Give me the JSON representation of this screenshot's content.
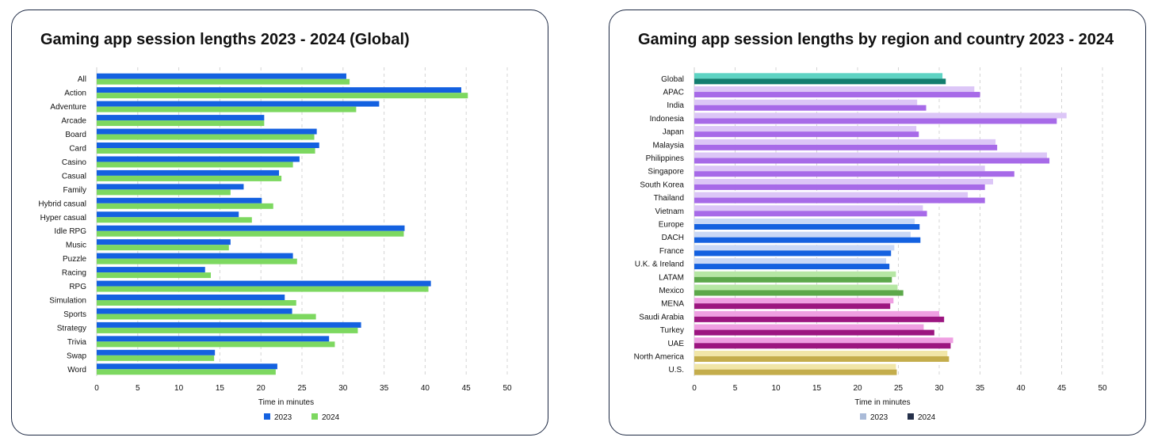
{
  "chart_data": [
    {
      "type": "bar",
      "orientation": "horizontal",
      "title": "Gaming app session lengths 2023 - 2024 (Global)",
      "xlabel": "Time in minutes",
      "ylabel": "",
      "xlim": [
        0,
        50
      ],
      "xticks": [
        0,
        5,
        10,
        15,
        20,
        25,
        30,
        35,
        40,
        45,
        50
      ],
      "grid": "vertical dashed",
      "legend_position": "bottom",
      "categories": [
        "All",
        "Action",
        "Adventure",
        "Arcade",
        "Board",
        "Card",
        "Casino",
        "Casual",
        "Family",
        "Hybrid casual",
        "Hyper casual",
        "Idle RPG",
        "Music",
        "Puzzle",
        "Racing",
        "RPG",
        "Simulation",
        "Sports",
        "Strategy",
        "Trivia",
        "Swap",
        "Word"
      ],
      "series": [
        {
          "name": "2023",
          "color": "#1461e0",
          "values": [
            30.4,
            44.4,
            34.4,
            20.4,
            26.8,
            27.1,
            24.7,
            22.2,
            17.9,
            20.1,
            17.3,
            37.5,
            16.3,
            23.9,
            13.2,
            40.7,
            22.9,
            23.8,
            32.2,
            28.3,
            14.4,
            22.0
          ]
        },
        {
          "name": "2024",
          "color": "#7dd860",
          "values": [
            30.8,
            45.2,
            31.6,
            20.4,
            26.5,
            26.6,
            23.9,
            22.5,
            16.3,
            21.5,
            18.9,
            37.4,
            16.1,
            24.4,
            13.9,
            40.4,
            24.3,
            26.7,
            31.8,
            29.0,
            14.3,
            21.8
          ]
        }
      ]
    },
    {
      "type": "bar",
      "orientation": "horizontal",
      "title": "Gaming app  session lengths by region and country 2023 - 2024",
      "xlabel": "Time in minutes",
      "ylabel": "",
      "xlim": [
        0,
        50
      ],
      "xticks": [
        0,
        5,
        10,
        15,
        20,
        25,
        30,
        35,
        40,
        45,
        50
      ],
      "grid": "vertical dashed",
      "legend_position": "bottom",
      "legend": [
        {
          "name": "2023",
          "color": "#aabbd8"
        },
        {
          "name": "2024",
          "color": "#25304a"
        }
      ],
      "categories": [
        "Global",
        "APAC",
        "India",
        "Indonesia",
        "Japan",
        "Malaysia",
        "Philippines",
        "Singapore",
        "South Korea",
        "Thailand",
        "Vietnam",
        "Europe",
        "DACH",
        "France",
        "U.K. & Ireland",
        "LATAM",
        "Mexico",
        "MENA",
        "Saudi Arabia",
        "Turkey",
        "UAE",
        "North America",
        "U.S."
      ],
      "series": [
        {
          "name": "2023",
          "values": [
            30.4,
            34.3,
            27.3,
            45.6,
            27.2,
            36.9,
            43.2,
            35.6,
            36.6,
            33.5,
            28.0,
            27.0,
            26.5,
            24.5,
            23.5,
            24.7,
            24.9,
            24.4,
            30.0,
            28.1,
            31.7,
            31.0,
            24.7
          ]
        },
        {
          "name": "2024",
          "values": [
            30.8,
            35.0,
            28.4,
            44.4,
            27.5,
            37.1,
            43.5,
            39.2,
            35.6,
            35.6,
            28.5,
            27.6,
            27.7,
            24.1,
            23.9,
            24.2,
            25.6,
            24.0,
            30.6,
            29.4,
            31.4,
            31.2,
            24.8
          ]
        }
      ],
      "group_colors": {
        "Global": [
          "#5ed3c3",
          "#137d6f"
        ],
        "APAC": [
          "#dcc6f7",
          "#a76ae8"
        ],
        "Europe": [
          "#c9d8f6",
          "#1461e0"
        ],
        "LATAM": [
          "#b6e7a4",
          "#5ca84a"
        ],
        "MENA": [
          "#ef9fe2",
          "#9c1580"
        ],
        "North America": [
          "#f1e6a8",
          "#c4ad4c"
        ]
      },
      "category_groups": [
        "Global",
        "APAC",
        "APAC",
        "APAC",
        "APAC",
        "APAC",
        "APAC",
        "APAC",
        "APAC",
        "APAC",
        "APAC",
        "Europe",
        "Europe",
        "Europe",
        "Europe",
        "LATAM",
        "LATAM",
        "MENA",
        "MENA",
        "MENA",
        "MENA",
        "North America",
        "North America"
      ]
    }
  ]
}
